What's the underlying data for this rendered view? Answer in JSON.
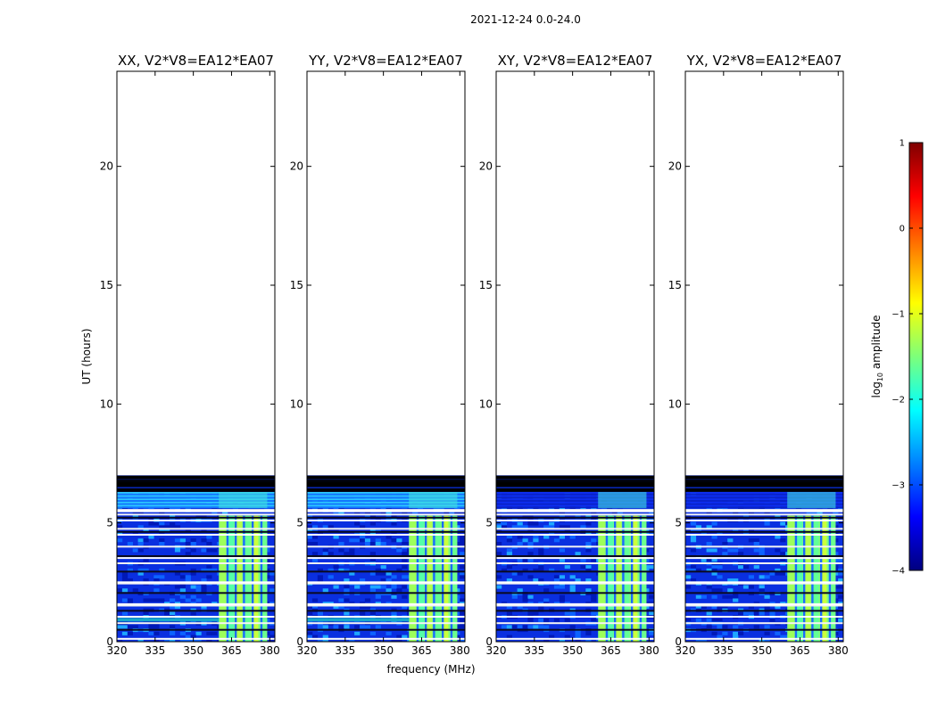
{
  "chart_data": {
    "type": "heatmap",
    "suptitle": "2021-12-24 0.0-24.0",
    "xlabel": "frequency (MHz)",
    "ylabel": "UT (hours)",
    "xlim": [
      320,
      382
    ],
    "ylim": [
      0,
      24
    ],
    "xticks": [
      320,
      335,
      350,
      365,
      380
    ],
    "yticks": [
      0,
      5,
      10,
      15,
      20
    ],
    "data_extent_hours": [
      0,
      7.0
    ],
    "panels": [
      {
        "title": "XX, V2*V8=EA12*EA07",
        "polarization": "XX",
        "cross_hand": false,
        "bright_start_mhz": 360,
        "bright_end_mhz": 379
      },
      {
        "title": "YY, V2*V8=EA12*EA07",
        "polarization": "YY",
        "cross_hand": false,
        "bright_start_mhz": 360,
        "bright_end_mhz": 379
      },
      {
        "title": "XY, V2*V8=EA12*EA07",
        "polarization": "XY",
        "cross_hand": true,
        "bright_start_mhz": 360,
        "bright_end_mhz": 379
      },
      {
        "title": "YX, V2*V8=EA12*EA07",
        "polarization": "YX",
        "cross_hand": true,
        "bright_start_mhz": 360,
        "bright_end_mhz": 379
      }
    ],
    "colorbar": {
      "label_main": "log",
      "label_sub": "10",
      "label_rest": " amplitude",
      "range": [
        -4,
        1
      ],
      "ticks": [
        -4,
        -3,
        -2,
        -1,
        0,
        1
      ],
      "tick_labels": [
        "−4",
        "−3",
        "−2",
        "−1",
        "0",
        "1"
      ],
      "colormap": "jet"
    },
    "flagged_hours": [
      0.12,
      0.5,
      0.78,
      1.05,
      1.3,
      1.52,
      1.58,
      2.05,
      2.45,
      2.5,
      2.95,
      3.3,
      3.52,
      3.6,
      4.0,
      4.5,
      4.62,
      4.75,
      5.1,
      5.22,
      5.35
    ],
    "dropout_bands_hours": [
      [
        5.45,
        5.58
      ]
    ],
    "end_flag_hours": [
      6.35,
      6.42,
      6.55,
      6.62,
      6.7,
      6.78,
      6.88,
      6.95
    ]
  }
}
